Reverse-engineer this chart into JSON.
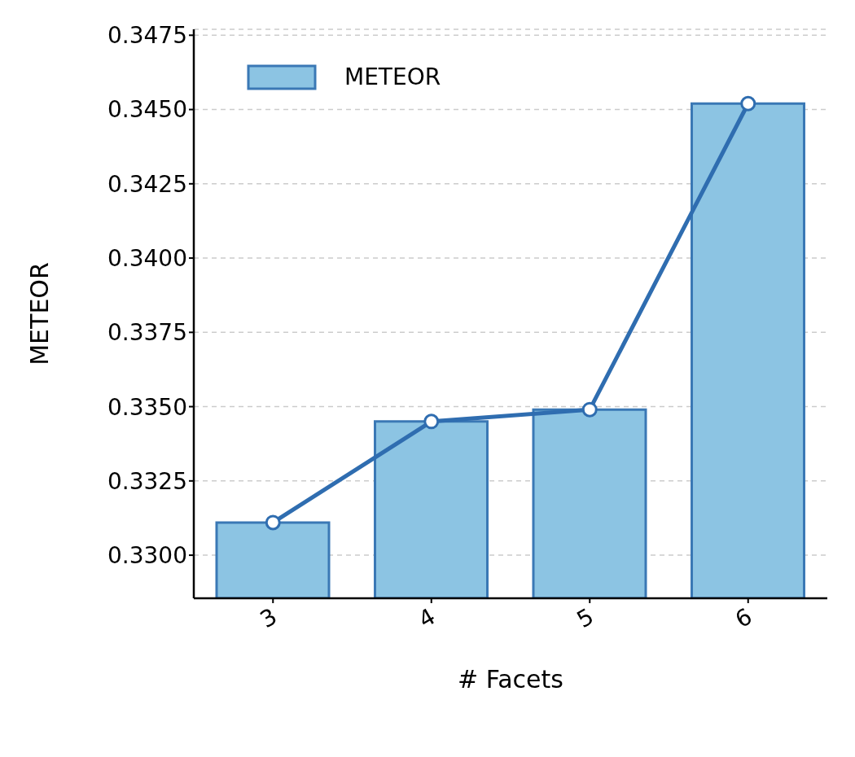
{
  "chart_data": {
    "type": "bar",
    "xlabel": "# Facets",
    "ylabel": "METEOR",
    "categories": [
      "3",
      "4",
      "5",
      "6"
    ],
    "series": [
      {
        "name": "METEOR",
        "color": "#8cc4e3",
        "values": [
          0.3311,
          0.3345,
          0.3349,
          0.3452
        ]
      },
      {
        "type": "line",
        "color": "#2f6db0",
        "values": [
          0.3311,
          0.3345,
          0.3349,
          0.3452
        ]
      }
    ],
    "ylim": [
      0.32855,
      0.3477
    ],
    "yticks": [
      {
        "value": 0.33,
        "label": "0.3300"
      },
      0.3325,
      {
        "value": 0.335,
        "label": "0.3350"
      },
      0.3375,
      {
        "value": 0.34,
        "label": "0.3400"
      },
      0.3425,
      {
        "value": 0.345,
        "label": "0.3450"
      },
      0.3475
    ],
    "grid": "y",
    "legend": "top left",
    "marker": "circle",
    "line_style": "solid"
  }
}
